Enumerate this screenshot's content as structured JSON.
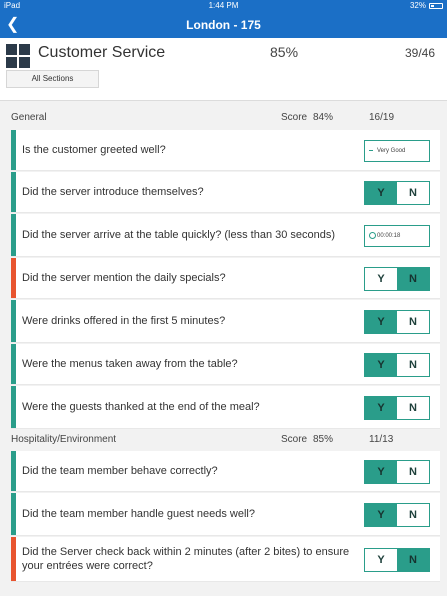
{
  "status_bar": {
    "device": "iPad",
    "time": "1:44 PM",
    "battery": "32%"
  },
  "nav": {
    "title": "London - 175",
    "back_icon": "chevron-left-icon"
  },
  "header": {
    "title": "Customer Service",
    "score": "85%",
    "count": "39/46",
    "all_sections_label": "All Sections",
    "icon": "grid-icon"
  },
  "sections": [
    {
      "name": "General",
      "score_label": "Score",
      "score": "84%",
      "count": "16/19"
    },
    {
      "name": "Hospitality/Environment",
      "score_label": "Score",
      "score": "85%",
      "count": "11/13"
    }
  ],
  "questions": [
    {
      "text": "Is the customer greeted well?",
      "status": "pass",
      "answer_type": "dropdown",
      "value": "Very Good"
    },
    {
      "text": "Did the server introduce themselves?",
      "status": "pass",
      "answer_type": "yn",
      "yes": "Y",
      "no": "N",
      "selected": "Y"
    },
    {
      "text": "Did the server arrive at the table quickly? (less than 30 seconds)",
      "status": "pass",
      "answer_type": "timer",
      "value": "00:00:18"
    },
    {
      "text": "Did the server mention the daily specials?",
      "status": "fail",
      "answer_type": "yn",
      "yes": "Y",
      "no": "N",
      "selected": "N"
    },
    {
      "text": "Were drinks offered in the first 5 minutes?",
      "status": "pass",
      "answer_type": "yn",
      "yes": "Y",
      "no": "N",
      "selected": "Y"
    },
    {
      "text": "Were the menus taken away from the table?",
      "status": "pass",
      "answer_type": "yn",
      "yes": "Y",
      "no": "N",
      "selected": "Y"
    },
    {
      "text": "Were the guests thanked at the end of the meal?",
      "status": "pass",
      "answer_type": "yn",
      "yes": "Y",
      "no": "N",
      "selected": "Y"
    },
    {
      "text": "Did the team member behave correctly?",
      "status": "pass",
      "answer_type": "yn",
      "yes": "Y",
      "no": "N",
      "selected": "Y"
    },
    {
      "text": "Did the team member handle guest needs well?",
      "status": "pass",
      "answer_type": "yn",
      "yes": "Y",
      "no": "N",
      "selected": "Y"
    },
    {
      "text": "Did the Server check back within 2 minutes (after 2 bites) to ensure your entrées were correct?",
      "status": "fail",
      "answer_type": "yn",
      "yes": "Y",
      "no": "N",
      "selected": "N"
    }
  ],
  "colors": {
    "brand": "#1b6fc6",
    "pass": "#2a9d8a",
    "fail": "#e8542f"
  }
}
